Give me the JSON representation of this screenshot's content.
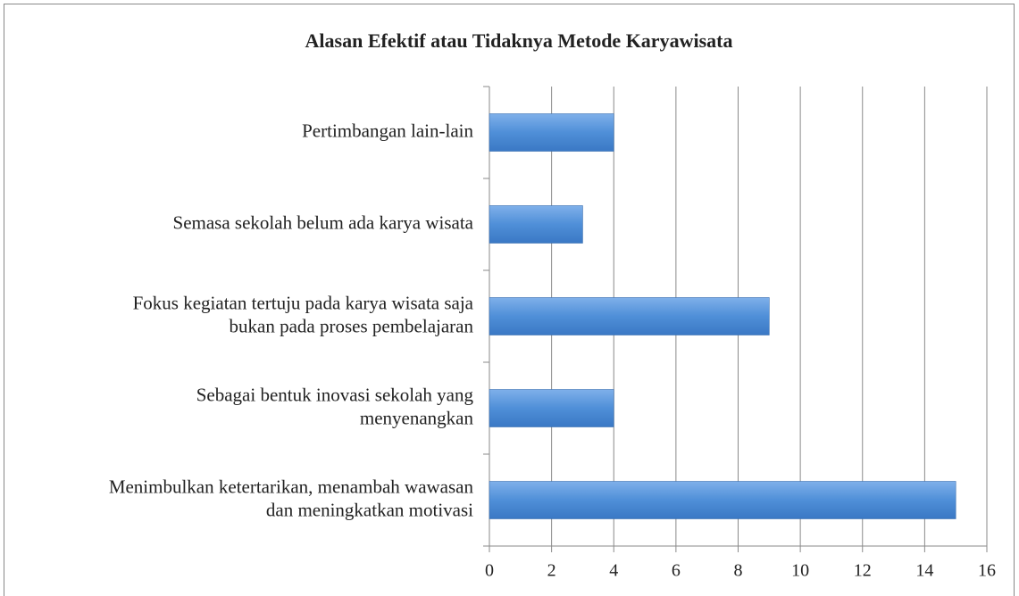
{
  "chart_data": {
    "type": "bar",
    "orientation": "horizontal",
    "title": "Alasan Efektif atau Tidaknya Metode Karyawisata",
    "categories": [
      [
        "Menimbulkan ketertarikan, menambah wawasan",
        "dan meningkatkan motivasi"
      ],
      [
        "Sebagai bentuk inovasi sekolah yang",
        "menyenangkan"
      ],
      [
        "Fokus kegiatan tertuju pada karya wisata saja",
        "bukan pada proses pembelajaran"
      ],
      [
        "Semasa sekolah belum ada karya wisata"
      ],
      [
        "Pertimbangan lain-lain"
      ]
    ],
    "values": [
      15,
      4,
      9,
      3,
      4
    ],
    "color": "#4f8fd8",
    "xlim": [
      0,
      16
    ],
    "xticks": [
      0,
      2,
      4,
      6,
      8,
      10,
      12,
      14,
      16
    ],
    "grid": true
  }
}
